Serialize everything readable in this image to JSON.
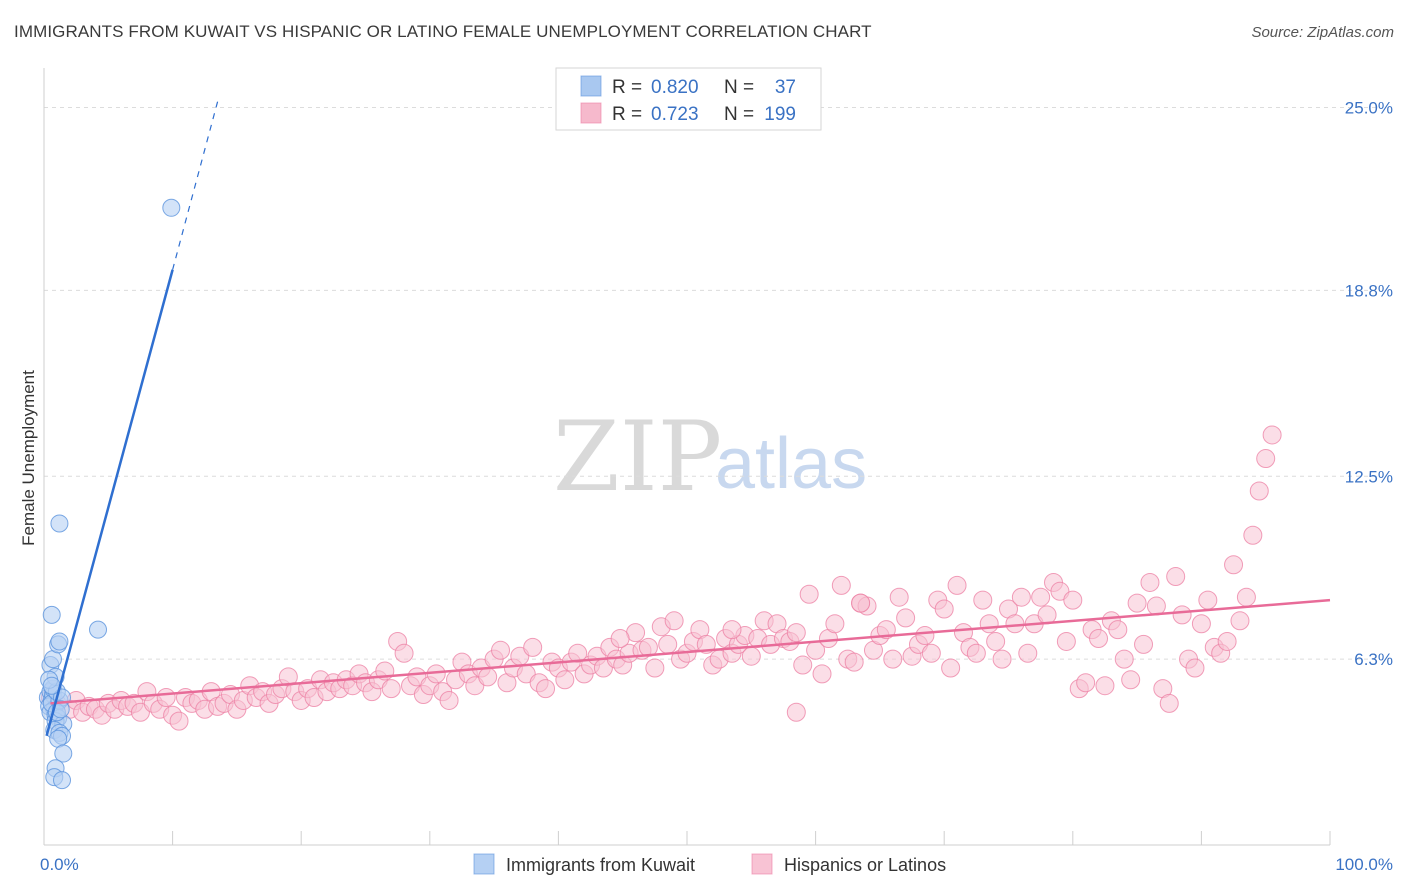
{
  "title": "IMMIGRANTS FROM KUWAIT VS HISPANIC OR LATINO FEMALE UNEMPLOYMENT CORRELATION CHART",
  "source": "Source: ZipAtlas.com",
  "watermark": {
    "zip": "ZIP",
    "atlas": "atlas"
  },
  "chart_data": {
    "type": "scatter",
    "ylabel": "Female Unemployment",
    "xlim": [
      0,
      100
    ],
    "ylim": [
      0,
      26.0
    ],
    "x_tick_labels": [
      {
        "value": 0,
        "label": "0.0%"
      },
      {
        "value": 100,
        "label": "100.0%"
      }
    ],
    "y_ticks": [
      {
        "value": 6.3,
        "label": "6.3%"
      },
      {
        "value": 12.5,
        "label": "12.5%"
      },
      {
        "value": 18.8,
        "label": "18.8%"
      },
      {
        "value": 25.0,
        "label": "25.0%"
      }
    ],
    "grid": true,
    "legend_placement": "top-center",
    "legend_stats": [
      {
        "r_label": "R =",
        "r": "0.820",
        "n_label": "N =",
        "n": "37",
        "color": "#a9c8f0"
      },
      {
        "r_label": "R =",
        "r": "0.723",
        "n_label": "N =",
        "n": "199",
        "color": "#f6b9cc"
      }
    ],
    "series": [
      {
        "name": "Immigrants from Kuwait",
        "color": "#5b93dd",
        "fill": "#b5d0f3",
        "trend": {
          "x0": 0.2,
          "y0": 3.7,
          "x1": 10.0,
          "y1": 19.5,
          "dash_to_x": 13.5,
          "dash_to_y": 25.2,
          "color": "#2f6fd0"
        },
        "points": [
          [
            0.3,
            5.0
          ],
          [
            0.5,
            5.2
          ],
          [
            0.6,
            4.9
          ],
          [
            0.7,
            5.1
          ],
          [
            0.4,
            4.7
          ],
          [
            0.8,
            4.6
          ],
          [
            0.5,
            4.5
          ],
          [
            0.9,
            4.4
          ],
          [
            1.1,
            4.3
          ],
          [
            0.6,
            4.8
          ],
          [
            1.2,
            4.9
          ],
          [
            0.7,
            5.3
          ],
          [
            1.0,
            5.2
          ],
          [
            1.4,
            5.0
          ],
          [
            0.9,
            4.2
          ],
          [
            1.5,
            4.1
          ],
          [
            0.8,
            3.9
          ],
          [
            1.2,
            3.8
          ],
          [
            1.4,
            3.7
          ],
          [
            1.1,
            3.6
          ],
          [
            1.5,
            3.1
          ],
          [
            0.9,
            2.6
          ],
          [
            0.8,
            2.3
          ],
          [
            1.4,
            2.2
          ],
          [
            0.5,
            6.1
          ],
          [
            0.7,
            6.3
          ],
          [
            0.9,
            5.7
          ],
          [
            1.1,
            6.8
          ],
          [
            1.2,
            6.9
          ],
          [
            0.6,
            7.8
          ],
          [
            1.2,
            10.9
          ],
          [
            4.2,
            7.3
          ],
          [
            9.9,
            21.6
          ],
          [
            0.4,
            5.6
          ],
          [
            0.6,
            5.4
          ],
          [
            1.0,
            4.5
          ],
          [
            1.3,
            4.6
          ]
        ]
      },
      {
        "name": "Hispanics or Latinos",
        "color": "#ec7fa3",
        "fill": "#f8c3d4",
        "trend": {
          "x0": 0.5,
          "y0": 4.8,
          "x1": 100.0,
          "y1": 8.3,
          "color": "#e86b98"
        },
        "points": [
          [
            0.5,
            5.0
          ],
          [
            1.0,
            4.8
          ],
          [
            2.0,
            4.6
          ],
          [
            2.5,
            4.9
          ],
          [
            3.0,
            4.5
          ],
          [
            3.5,
            4.7
          ],
          [
            4.0,
            4.6
          ],
          [
            4.5,
            4.4
          ],
          [
            5.0,
            4.8
          ],
          [
            5.5,
            4.6
          ],
          [
            6.0,
            4.9
          ],
          [
            6.5,
            4.7
          ],
          [
            7.0,
            4.8
          ],
          [
            7.5,
            4.5
          ],
          [
            8.0,
            5.2
          ],
          [
            8.5,
            4.8
          ],
          [
            9.0,
            4.6
          ],
          [
            9.5,
            5.0
          ],
          [
            10.0,
            4.4
          ],
          [
            10.5,
            4.2
          ],
          [
            11.0,
            5.0
          ],
          [
            11.5,
            4.8
          ],
          [
            12.0,
            4.9
          ],
          [
            12.5,
            4.6
          ],
          [
            13.0,
            5.2
          ],
          [
            13.5,
            4.7
          ],
          [
            14.0,
            4.8
          ],
          [
            14.5,
            5.1
          ],
          [
            15.0,
            4.6
          ],
          [
            15.5,
            4.9
          ],
          [
            16.0,
            5.4
          ],
          [
            16.5,
            5.0
          ],
          [
            17.0,
            5.2
          ],
          [
            17.5,
            4.8
          ],
          [
            18.0,
            5.1
          ],
          [
            18.5,
            5.3
          ],
          [
            19.0,
            5.7
          ],
          [
            19.5,
            5.2
          ],
          [
            20.0,
            4.9
          ],
          [
            20.5,
            5.3
          ],
          [
            21.0,
            5.0
          ],
          [
            21.5,
            5.6
          ],
          [
            22.0,
            5.2
          ],
          [
            22.5,
            5.5
          ],
          [
            23.0,
            5.3
          ],
          [
            23.5,
            5.6
          ],
          [
            24.0,
            5.4
          ],
          [
            24.5,
            5.8
          ],
          [
            25.0,
            5.5
          ],
          [
            25.5,
            5.2
          ],
          [
            26.0,
            5.6
          ],
          [
            26.5,
            5.9
          ],
          [
            27.0,
            5.3
          ],
          [
            27.5,
            6.9
          ],
          [
            28.0,
            6.5
          ],
          [
            28.5,
            5.4
          ],
          [
            29.0,
            5.7
          ],
          [
            29.5,
            5.1
          ],
          [
            30.0,
            5.4
          ],
          [
            30.5,
            5.8
          ],
          [
            31.0,
            5.2
          ],
          [
            31.5,
            4.9
          ],
          [
            32.0,
            5.6
          ],
          [
            32.5,
            6.2
          ],
          [
            33.0,
            5.8
          ],
          [
            33.5,
            5.4
          ],
          [
            34.0,
            6.0
          ],
          [
            34.5,
            5.7
          ],
          [
            35.0,
            6.3
          ],
          [
            35.5,
            6.6
          ],
          [
            36.0,
            5.5
          ],
          [
            36.5,
            6.0
          ],
          [
            37.0,
            6.4
          ],
          [
            37.5,
            5.8
          ],
          [
            38.0,
            6.7
          ],
          [
            38.5,
            5.5
          ],
          [
            39.0,
            5.3
          ],
          [
            39.5,
            6.2
          ],
          [
            40.0,
            6.0
          ],
          [
            40.5,
            5.6
          ],
          [
            41.0,
            6.2
          ],
          [
            41.5,
            6.5
          ],
          [
            42.0,
            5.8
          ],
          [
            42.5,
            6.1
          ],
          [
            43.0,
            6.4
          ],
          [
            43.5,
            6.0
          ],
          [
            44.0,
            6.7
          ],
          [
            44.5,
            6.3
          ],
          [
            45.0,
            6.1
          ],
          [
            45.5,
            6.5
          ],
          [
            46.0,
            7.2
          ],
          [
            46.5,
            6.6
          ],
          [
            47.0,
            6.7
          ],
          [
            47.5,
            6.0
          ],
          [
            48.0,
            7.4
          ],
          [
            48.5,
            6.8
          ],
          [
            49.0,
            7.6
          ],
          [
            49.5,
            6.3
          ],
          [
            50.0,
            6.5
          ],
          [
            50.5,
            6.9
          ],
          [
            51.0,
            7.3
          ],
          [
            51.5,
            6.8
          ],
          [
            52.0,
            6.1
          ],
          [
            52.5,
            6.3
          ],
          [
            53.0,
            7.0
          ],
          [
            53.5,
            6.5
          ],
          [
            54.0,
            6.8
          ],
          [
            54.5,
            7.1
          ],
          [
            55.0,
            6.4
          ],
          [
            55.5,
            7.0
          ],
          [
            56.0,
            7.6
          ],
          [
            56.5,
            6.8
          ],
          [
            57.0,
            7.5
          ],
          [
            57.5,
            7.0
          ],
          [
            58.0,
            6.9
          ],
          [
            58.5,
            7.2
          ],
          [
            59.0,
            6.1
          ],
          [
            59.5,
            8.5
          ],
          [
            60.0,
            6.6
          ],
          [
            60.5,
            5.8
          ],
          [
            61.0,
            7.0
          ],
          [
            61.5,
            7.5
          ],
          [
            62.0,
            8.8
          ],
          [
            62.5,
            6.3
          ],
          [
            63.0,
            6.2
          ],
          [
            63.5,
            8.2
          ],
          [
            64.0,
            8.1
          ],
          [
            64.5,
            6.6
          ],
          [
            65.0,
            7.1
          ],
          [
            65.5,
            7.3
          ],
          [
            66.0,
            6.3
          ],
          [
            66.5,
            8.4
          ],
          [
            67.0,
            7.7
          ],
          [
            67.5,
            6.4
          ],
          [
            68.0,
            6.8
          ],
          [
            68.5,
            7.1
          ],
          [
            69.0,
            6.5
          ],
          [
            69.5,
            8.3
          ],
          [
            70.0,
            8.0
          ],
          [
            70.5,
            6.0
          ],
          [
            71.0,
            8.8
          ],
          [
            71.5,
            7.2
          ],
          [
            72.0,
            6.7
          ],
          [
            72.5,
            6.5
          ],
          [
            73.0,
            8.3
          ],
          [
            73.5,
            7.5
          ],
          [
            74.0,
            6.9
          ],
          [
            74.5,
            6.3
          ],
          [
            75.0,
            8.0
          ],
          [
            75.5,
            7.5
          ],
          [
            76.0,
            8.4
          ],
          [
            76.5,
            6.5
          ],
          [
            77.0,
            7.5
          ],
          [
            77.5,
            8.4
          ],
          [
            78.0,
            7.8
          ],
          [
            78.5,
            8.9
          ],
          [
            79.0,
            8.6
          ],
          [
            79.5,
            6.9
          ],
          [
            80.0,
            8.3
          ],
          [
            80.5,
            5.3
          ],
          [
            81.0,
            5.5
          ],
          [
            81.5,
            7.3
          ],
          [
            82.0,
            7.0
          ],
          [
            82.5,
            5.4
          ],
          [
            83.0,
            7.6
          ],
          [
            83.5,
            7.3
          ],
          [
            84.0,
            6.3
          ],
          [
            84.5,
            5.6
          ],
          [
            85.0,
            8.2
          ],
          [
            85.5,
            6.8
          ],
          [
            86.0,
            8.9
          ],
          [
            86.5,
            8.1
          ],
          [
            87.0,
            5.3
          ],
          [
            87.5,
            4.8
          ],
          [
            88.0,
            9.1
          ],
          [
            88.5,
            7.8
          ],
          [
            89.0,
            6.3
          ],
          [
            89.5,
            6.0
          ],
          [
            90.0,
            7.5
          ],
          [
            90.5,
            8.3
          ],
          [
            91.0,
            6.7
          ],
          [
            91.5,
            6.5
          ],
          [
            92.0,
            6.9
          ],
          [
            92.5,
            9.5
          ],
          [
            93.0,
            7.6
          ],
          [
            93.5,
            8.4
          ],
          [
            94.0,
            10.5
          ],
          [
            94.5,
            12.0
          ],
          [
            95.0,
            13.1
          ],
          [
            95.5,
            13.9
          ],
          [
            58.5,
            4.5
          ],
          [
            44.8,
            7.0
          ],
          [
            53.5,
            7.3
          ],
          [
            63.5,
            8.2
          ]
        ]
      }
    ]
  },
  "bottom_legend": [
    {
      "label": "Immigrants from Kuwait",
      "color": "#b5d0f3",
      "border": "#5b93dd"
    },
    {
      "label": "Hispanics or Latinos",
      "color": "#f8c3d4",
      "border": "#ec7fa3"
    }
  ]
}
